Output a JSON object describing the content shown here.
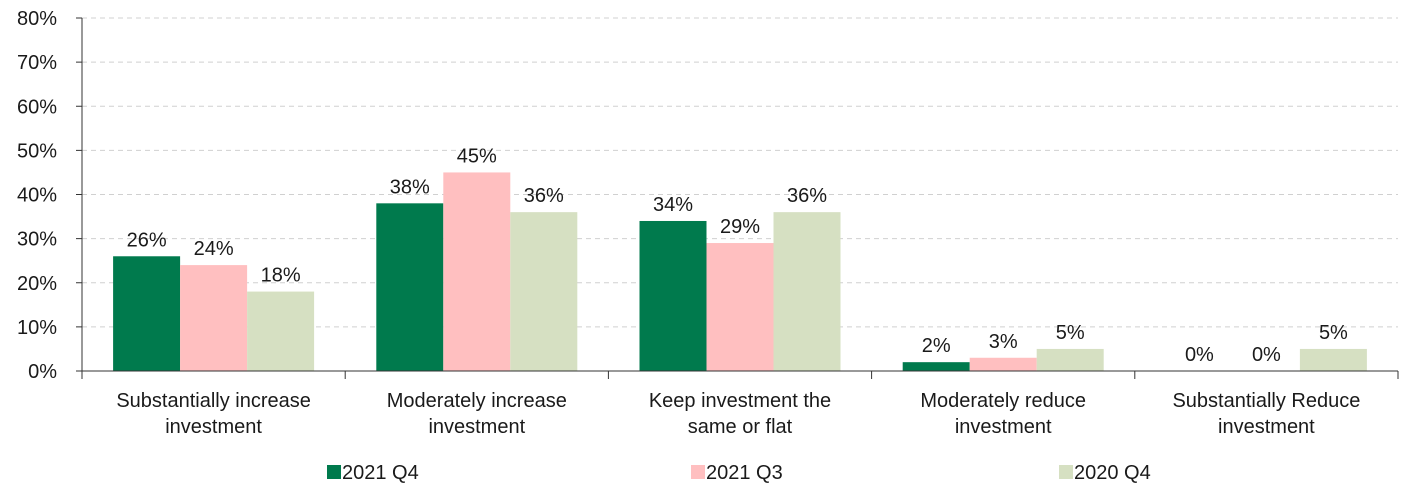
{
  "chart_data": {
    "type": "bar",
    "categories": [
      [
        "Substantially increase",
        "investment"
      ],
      [
        "Moderately increase",
        "investment"
      ],
      [
        "Keep investment the",
        "same or flat"
      ],
      [
        "Moderately reduce",
        "investment"
      ],
      [
        "Substantially Reduce",
        "investment"
      ]
    ],
    "series": [
      {
        "name": "2021 Q4",
        "color": "#007a4d",
        "values": [
          26,
          38,
          34,
          2,
          0
        ],
        "labels": [
          "26%",
          "38%",
          "34%",
          "2%",
          "0%"
        ]
      },
      {
        "name": "2021 Q3",
        "color": "#ffbfc0",
        "values": [
          24,
          45,
          29,
          3,
          0
        ],
        "labels": [
          "24%",
          "45%",
          "29%",
          "3%",
          "0%"
        ]
      },
      {
        "name": "2020 Q4",
        "color": "#d6e0c2",
        "values": [
          18,
          36,
          36,
          5,
          5
        ],
        "labels": [
          "18%",
          "36%",
          "36%",
          "5%",
          "5%"
        ]
      }
    ],
    "ylim": [
      0,
      80
    ],
    "yticks": [
      "0%",
      "10%",
      "20%",
      "30%",
      "40%",
      "50%",
      "60%",
      "70%",
      "80%"
    ],
    "grid": true,
    "legend": "bottom"
  }
}
